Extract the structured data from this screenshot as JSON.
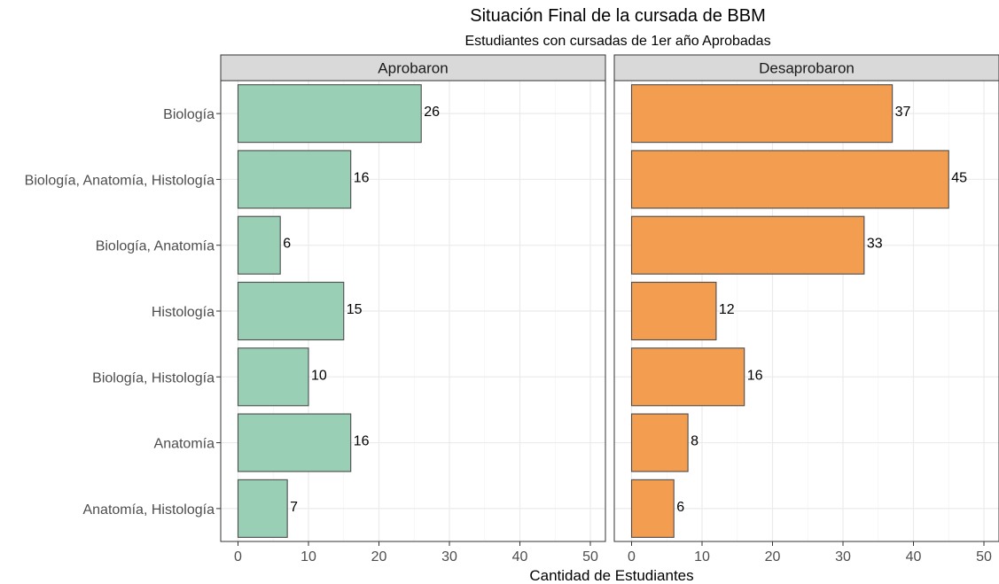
{
  "chart_data": {
    "type": "bar",
    "orientation": "horizontal",
    "title": "Situación Final de la cursada de BBM",
    "subtitle": "Estudiantes con cursadas de 1er año Aprobadas",
    "xlabel": "Cantidad de Estudiantes",
    "ylabel": "",
    "categories": [
      "Biología",
      "Biología, Anatomía, Histología",
      "Biología, Anatomía",
      "Histología",
      "Biología, Histología",
      "Anatomía",
      "Anatomía, Histología"
    ],
    "xlim": [
      0,
      50
    ],
    "xticks": [
      "0",
      "10",
      "20",
      "30",
      "40",
      "50"
    ],
    "grid": true,
    "legend": "none",
    "panels": [
      {
        "name": "Aprobaron",
        "color": "#99cfb5",
        "values": [
          26,
          16,
          6,
          15,
          10,
          16,
          7
        ]
      },
      {
        "name": "Desaprobaron",
        "color": "#f29d50",
        "values": [
          37,
          45,
          33,
          12,
          16,
          8,
          6
        ]
      }
    ]
  }
}
